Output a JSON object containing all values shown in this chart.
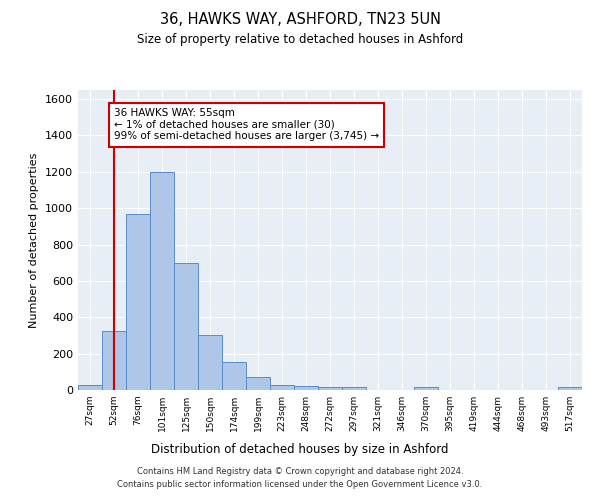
{
  "title1": "36, HAWKS WAY, ASHFORD, TN23 5UN",
  "title2": "Size of property relative to detached houses in Ashford",
  "xlabel": "Distribution of detached houses by size in Ashford",
  "ylabel": "Number of detached properties",
  "categories": [
    "27sqm",
    "52sqm",
    "76sqm",
    "101sqm",
    "125sqm",
    "150sqm",
    "174sqm",
    "199sqm",
    "223sqm",
    "248sqm",
    "272sqm",
    "297sqm",
    "321sqm",
    "346sqm",
    "370sqm",
    "395sqm",
    "419sqm",
    "444sqm",
    "468sqm",
    "493sqm",
    "517sqm"
  ],
  "values": [
    30,
    325,
    970,
    1200,
    700,
    305,
    155,
    70,
    25,
    20,
    15,
    15,
    0,
    0,
    15,
    0,
    0,
    0,
    0,
    0,
    15
  ],
  "bar_color": "#aec6e8",
  "bar_edge_color": "#5b8cc8",
  "vline_x": 1,
  "vline_color": "#cc0000",
  "annotation_text": "36 HAWKS WAY: 55sqm\n← 1% of detached houses are smaller (30)\n99% of semi-detached houses are larger (3,745) →",
  "annotation_box_color": "#ffffff",
  "annotation_box_edge": "#cc0000",
  "ylim": [
    0,
    1650
  ],
  "yticks": [
    0,
    200,
    400,
    600,
    800,
    1000,
    1200,
    1400,
    1600
  ],
  "background_color": "#e8eef5",
  "footer1": "Contains HM Land Registry data © Crown copyright and database right 2024.",
  "footer2": "Contains public sector information licensed under the Open Government Licence v3.0."
}
